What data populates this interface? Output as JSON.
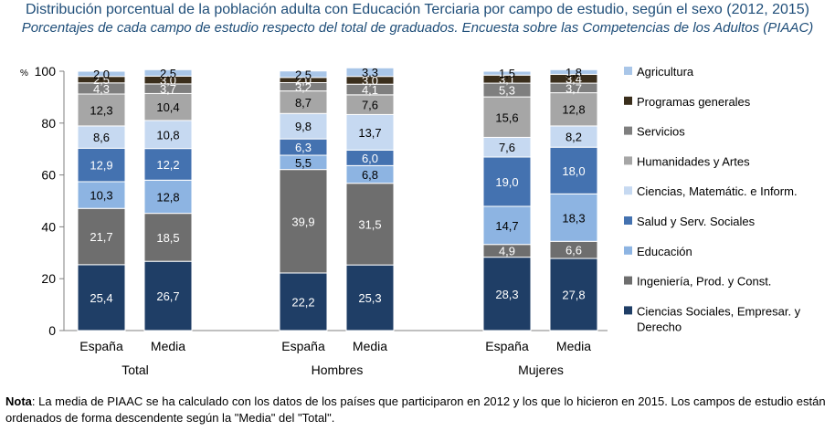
{
  "titles": {
    "main": "Distribución porcentual de la población adulta con Educación Terciaria por campo de estudio, según el sexo (2012, 2015)",
    "sub": "Porcentajes de cada campo de estudio respecto del total de graduados. Encuesta sobre las Competencias de los Adultos (PIAAC)"
  },
  "note": {
    "label": "Nota",
    "text": ": La media de PIAAC se ha calculado con los datos de los países que participaron en 2012 y los que lo hicieron en 2015. Los campos de estudio están ordenados de forma descendente según la \"Media\" del \"Total\"."
  },
  "colors": {
    "Ciencias Sociales, Empresar. y Derecho": "#1f3e66",
    "Ingeniería, Prod. y  Const.": "#6e6e6e",
    "Educación": "#8db4e2",
    "Salud y Serv. Sociales": "#4472b0",
    "Ciencias, Matemátic. e Inform.": "#c6d9f1",
    "Humanidades y Artes": "#a6a6a6",
    "Servicios": "#7f7f7f",
    "Programas generales": "#3a2e1c",
    "Agricultura": "#a9c6e8"
  },
  "chart_data": {
    "type": "bar",
    "stacked": true,
    "y_unit_label": "%",
    "ylim": [
      0,
      100
    ],
    "yticks": [
      0,
      20,
      40,
      60,
      80,
      100
    ],
    "groups": [
      {
        "name": "Total",
        "bars": [
          "España",
          "Media"
        ]
      },
      {
        "name": "Hombres",
        "bars": [
          "España",
          "Media"
        ]
      },
      {
        "name": "Mujeres",
        "bars": [
          "España",
          "Media"
        ]
      }
    ],
    "categories": [
      "Total España",
      "Total Media",
      "Hombres España",
      "Hombres Media",
      "Mujeres España",
      "Mujeres Media"
    ],
    "bar_labels": [
      "España",
      "Media",
      "España",
      "Media",
      "España",
      "Media"
    ],
    "series": [
      {
        "name": "Ciencias Sociales, Empresar. y Derecho",
        "values": [
          25.4,
          26.7,
          22.2,
          25.3,
          28.3,
          27.8
        ],
        "labels": [
          "25,4",
          "26,7",
          "22,2",
          "25,3",
          "28,3",
          "27,8"
        ]
      },
      {
        "name": "Ingeniería, Prod. y  Const.",
        "values": [
          21.7,
          18.5,
          39.9,
          31.5,
          4.9,
          6.6
        ],
        "labels": [
          "21,7",
          "18,5",
          "39,9",
          "31,5",
          "4,9",
          "6,6"
        ]
      },
      {
        "name": "Educación",
        "values": [
          10.3,
          12.8,
          5.5,
          6.8,
          14.7,
          18.3
        ],
        "labels": [
          "10,3",
          "12,8",
          "5,5",
          "6,8",
          "14,7",
          "18,3"
        ]
      },
      {
        "name": "Salud y Serv. Sociales",
        "values": [
          12.9,
          12.2,
          6.3,
          6.0,
          19.0,
          18.0
        ],
        "labels": [
          "12,9",
          "12,2",
          "6,3",
          "6,0",
          "19,0",
          "18,0"
        ]
      },
      {
        "name": "Ciencias, Matemátic. e Inform.",
        "values": [
          8.6,
          10.8,
          9.8,
          13.7,
          7.6,
          8.2
        ],
        "labels": [
          "8,6",
          "10,8",
          "9,8",
          "13,7",
          "7,6",
          "8,2"
        ]
      },
      {
        "name": "Humanidades y Artes",
        "values": [
          12.3,
          10.4,
          8.7,
          7.6,
          15.6,
          12.8
        ],
        "labels": [
          "12,3",
          "10,4",
          "8,7",
          "7,6",
          "15,6",
          "12,8"
        ]
      },
      {
        "name": "Servicios",
        "values": [
          4.3,
          3.7,
          3.2,
          4.1,
          5.3,
          3.7
        ],
        "labels": [
          "4,3",
          "3,7",
          "3,2",
          "4,1",
          "5,3",
          "3,7"
        ]
      },
      {
        "name": "Programas generales",
        "values": [
          2.5,
          3.0,
          2.0,
          3.0,
          3.1,
          3.4
        ],
        "labels": [
          "2,5",
          "3,0",
          "2,0",
          "3,0",
          "3,1",
          "3,4"
        ]
      },
      {
        "name": "Agricultura",
        "values": [
          2.0,
          2.5,
          2.5,
          3.3,
          1.5,
          1.8
        ],
        "labels": [
          "2,0",
          "2,5",
          "2,5",
          "3,3",
          "1,5",
          "1,8"
        ]
      }
    ],
    "legend": {
      "position": "right",
      "order": [
        "Agricultura",
        "Programas generales",
        "Servicios",
        "Humanidades y Artes",
        "Ciencias, Matemátic. e Inform.",
        "Salud y Serv. Sociales",
        "Educación",
        "Ingeniería, Prod. y  Const.",
        "Ciencias Sociales, Empresar. y Derecho"
      ],
      "display_lines": [
        [
          "Agricultura"
        ],
        [
          "Programas generales"
        ],
        [
          "Servicios"
        ],
        [
          "Humanidades y Artes"
        ],
        [
          "Ciencias, Matemátic. e Inform."
        ],
        [
          "Salud y Serv. Sociales"
        ],
        [
          "Educación"
        ],
        [
          "Ingeniería, Prod. y  Const."
        ],
        [
          "Ciencias Sociales, Empresar. y",
          "Derecho"
        ]
      ]
    },
    "grid": false
  }
}
